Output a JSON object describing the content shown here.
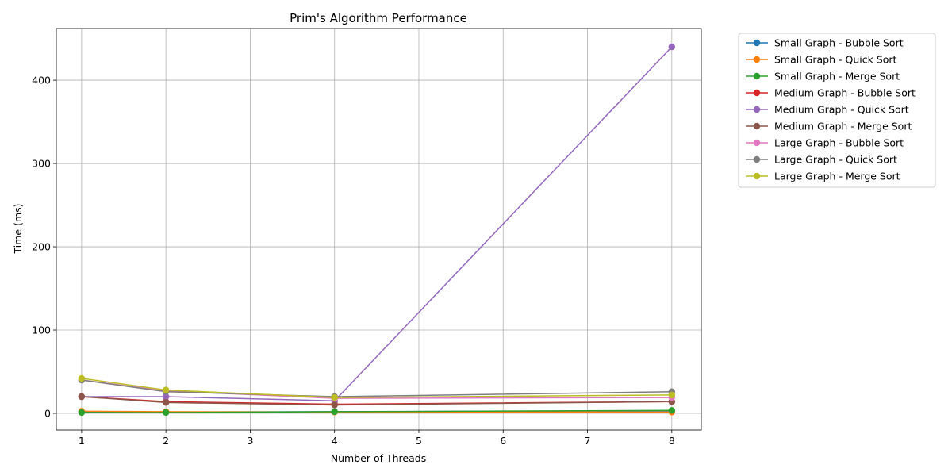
{
  "chart_data": {
    "type": "line",
    "title": "Prim's Algorithm Performance",
    "xlabel": "Number of Threads",
    "ylabel": "Time (ms)",
    "x": [
      1,
      2,
      4,
      8
    ],
    "xlim": [
      0.7,
      8.35
    ],
    "ylim": [
      -20,
      462
    ],
    "xticks": [
      1,
      2,
      3,
      4,
      5,
      6,
      7,
      8
    ],
    "yticks": [
      0,
      100,
      200,
      300,
      400
    ],
    "grid": true,
    "legend_position": "outside-right",
    "series": [
      {
        "name": "Small Graph - Bubble Sort",
        "color": "#1f77b4",
        "values": [
          2.0,
          1.5,
          2.0,
          3.0
        ]
      },
      {
        "name": "Small Graph - Quick Sort",
        "color": "#ff7f0e",
        "values": [
          2.5,
          2.0,
          1.5,
          1.5
        ]
      },
      {
        "name": "Small Graph - Merge Sort",
        "color": "#2ca02c",
        "values": [
          1.0,
          1.0,
          2.0,
          3.5
        ]
      },
      {
        "name": "Medium Graph - Bubble Sort",
        "color": "#d62728",
        "values": [
          20,
          14,
          11,
          14
        ]
      },
      {
        "name": "Medium Graph - Quick Sort",
        "color": "#9467bd",
        "values": [
          20,
          20,
          15,
          440
        ]
      },
      {
        "name": "Medium Graph - Merge Sort",
        "color": "#8c564b",
        "values": [
          20,
          13,
          10,
          14
        ]
      },
      {
        "name": "Large Graph - Bubble Sort",
        "color": "#e377c2",
        "values": [
          40,
          27,
          18,
          19
        ]
      },
      {
        "name": "Large Graph - Quick Sort",
        "color": "#7f7f7f",
        "values": [
          40,
          26,
          20,
          26
        ]
      },
      {
        "name": "Large Graph - Merge Sort",
        "color": "#bcbd22",
        "values": [
          42,
          28,
          19,
          22
        ]
      }
    ]
  }
}
